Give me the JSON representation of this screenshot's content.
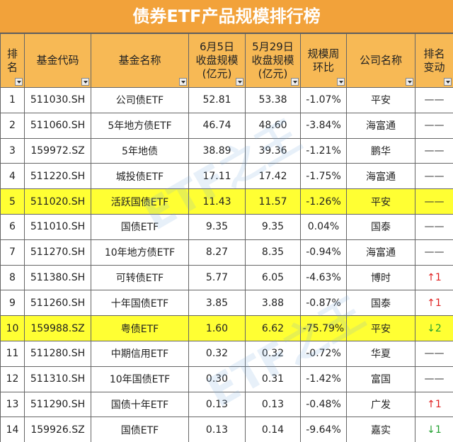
{
  "title": "债券ETF产品规模排行榜",
  "watermark": "ETF之王",
  "table": {
    "headers": [
      [
        "排",
        "名"
      ],
      [
        "基金代码"
      ],
      [
        "基金名称"
      ],
      [
        "6月5日",
        "收盘规模",
        "(亿元)"
      ],
      [
        "5月29日",
        "收盘规模",
        "(亿元)"
      ],
      [
        "规模周",
        "环比"
      ],
      [
        "公司名称"
      ],
      [
        "排名",
        "变动"
      ]
    ],
    "rows": [
      {
        "cells": [
          "1",
          "511030.SH",
          "公司债ETF",
          "52.81",
          "53.38",
          "-1.07%",
          "平安",
          "——"
        ]
      },
      {
        "cells": [
          "2",
          "511060.SH",
          "5年地方债ETF",
          "46.74",
          "48.60",
          "-3.84%",
          "海富通",
          "——"
        ]
      },
      {
        "cells": [
          "3",
          "159972.SZ",
          "5年地债",
          "38.89",
          "39.36",
          "-1.21%",
          "鹏华",
          "——"
        ]
      },
      {
        "cells": [
          "4",
          "511220.SH",
          "城投债ETF",
          "17.11",
          "17.42",
          "-1.75%",
          "海富通",
          "——"
        ]
      },
      {
        "cells": [
          "5",
          "511020.SH",
          "活跃国债ETF",
          "11.43",
          "11.57",
          "-1.26%",
          "平安",
          "——"
        ],
        "highlight": true
      },
      {
        "cells": [
          "6",
          "511010.SH",
          "国债ETF",
          "9.35",
          "9.35",
          "0.04%",
          "国泰",
          "——"
        ]
      },
      {
        "cells": [
          "7",
          "511270.SH",
          "10年地方债ETF",
          "8.27",
          "8.35",
          "-0.94%",
          "海富通",
          "——"
        ]
      },
      {
        "cells": [
          "8",
          "511380.SH",
          "可转债ETF",
          "5.77",
          "6.05",
          "-4.63%",
          "博时",
          "↑1"
        ]
      },
      {
        "cells": [
          "9",
          "511260.SH",
          "十年国债ETF",
          "3.85",
          "3.88",
          "-0.87%",
          "国泰",
          "↑1"
        ]
      },
      {
        "cells": [
          "10",
          "159988.SZ",
          "粤债ETF",
          "1.60",
          "6.62",
          "-75.79%",
          "平安",
          "↓2"
        ],
        "highlight": true
      },
      {
        "cells": [
          "11",
          "511280.SH",
          "中期信用ETF",
          "0.32",
          "0.32",
          "-0.72%",
          "华夏",
          "——"
        ]
      },
      {
        "cells": [
          "12",
          "511310.SH",
          "10年国债ETF",
          "0.30",
          "0.31",
          "-1.42%",
          "富国",
          "——"
        ]
      },
      {
        "cells": [
          "13",
          "511290.SH",
          "国债十年ETF",
          "0.13",
          "0.13",
          "-0.48%",
          "广发",
          "↑1"
        ]
      },
      {
        "cells": [
          "14",
          "159926.SZ",
          "国债ETF",
          "0.13",
          "0.14",
          "-9.64%",
          "嘉实",
          "↓1"
        ]
      }
    ]
  }
}
